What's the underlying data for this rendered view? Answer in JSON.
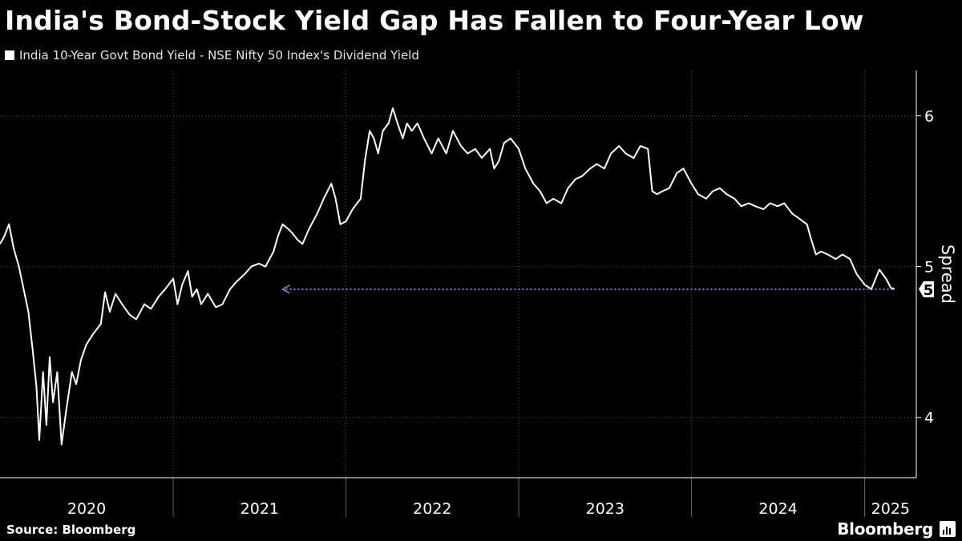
{
  "header": {
    "title": "India's Bond-Stock Yield Gap Has Fallen to Four-Year Low"
  },
  "footer": {
    "source": "Source: Bloomberg",
    "brand": "Bloomberg"
  },
  "colors": {
    "background": "#000000",
    "line": "#ffffff",
    "grid": "#555555",
    "marker": "#b070e0"
  },
  "chart_data": {
    "type": "line",
    "title": "India's Bond-Stock Yield Gap Has Fallen to Four-Year Low",
    "series": [
      {
        "name": "India 10-Year Govt Bond Yield - NSE Nifty 50 Index's Dividend Yield",
        "color": "#ffffff",
        "points": [
          [
            "2020-01-01",
            5.15
          ],
          [
            "2020-01-10",
            5.2
          ],
          [
            "2020-01-20",
            5.28
          ],
          [
            "2020-01-30",
            5.12
          ],
          [
            "2020-02-10",
            5.0
          ],
          [
            "2020-02-20",
            4.85
          ],
          [
            "2020-03-01",
            4.7
          ],
          [
            "2020-03-10",
            4.45
          ],
          [
            "2020-03-18",
            4.2
          ],
          [
            "2020-03-24",
            3.85
          ],
          [
            "2020-04-01",
            4.3
          ],
          [
            "2020-04-08",
            3.95
          ],
          [
            "2020-04-15",
            4.4
          ],
          [
            "2020-04-22",
            4.1
          ],
          [
            "2020-05-01",
            4.3
          ],
          [
            "2020-05-10",
            3.82
          ],
          [
            "2020-05-20",
            4.05
          ],
          [
            "2020-06-01",
            4.3
          ],
          [
            "2020-06-10",
            4.22
          ],
          [
            "2020-06-20",
            4.38
          ],
          [
            "2020-07-01",
            4.48
          ],
          [
            "2020-07-15",
            4.55
          ],
          [
            "2020-08-01",
            4.62
          ],
          [
            "2020-08-10",
            4.83
          ],
          [
            "2020-08-20",
            4.7
          ],
          [
            "2020-09-01",
            4.82
          ],
          [
            "2020-09-15",
            4.75
          ],
          [
            "2020-10-01",
            4.68
          ],
          [
            "2020-10-15",
            4.65
          ],
          [
            "2020-11-01",
            4.75
          ],
          [
            "2020-11-15",
            4.72
          ],
          [
            "2020-12-01",
            4.8
          ],
          [
            "2020-12-15",
            4.85
          ],
          [
            "2021-01-01",
            4.92
          ],
          [
            "2021-01-10",
            4.75
          ],
          [
            "2021-01-20",
            4.88
          ],
          [
            "2021-02-01",
            4.97
          ],
          [
            "2021-02-10",
            4.8
          ],
          [
            "2021-02-20",
            4.85
          ],
          [
            "2021-03-01",
            4.75
          ],
          [
            "2021-03-15",
            4.82
          ],
          [
            "2021-04-01",
            4.73
          ],
          [
            "2021-04-15",
            4.75
          ],
          [
            "2021-05-01",
            4.85
          ],
          [
            "2021-05-15",
            4.9
          ],
          [
            "2021-06-01",
            4.95
          ],
          [
            "2021-06-15",
            5.0
          ],
          [
            "2021-07-01",
            5.02
          ],
          [
            "2021-07-15",
            5.0
          ],
          [
            "2021-08-01",
            5.1
          ],
          [
            "2021-08-10",
            5.2
          ],
          [
            "2021-08-20",
            5.28
          ],
          [
            "2021-09-01",
            5.25
          ],
          [
            "2021-09-10",
            5.22
          ],
          [
            "2021-09-20",
            5.18
          ],
          [
            "2021-10-01",
            5.15
          ],
          [
            "2021-10-15",
            5.25
          ],
          [
            "2021-11-01",
            5.35
          ],
          [
            "2021-11-15",
            5.45
          ],
          [
            "2021-12-01",
            5.55
          ],
          [
            "2021-12-10",
            5.45
          ],
          [
            "2021-12-20",
            5.28
          ],
          [
            "2022-01-01",
            5.3
          ],
          [
            "2022-01-15",
            5.38
          ],
          [
            "2022-02-01",
            5.45
          ],
          [
            "2022-02-10",
            5.7
          ],
          [
            "2022-02-20",
            5.9
          ],
          [
            "2022-03-01",
            5.85
          ],
          [
            "2022-03-10",
            5.75
          ],
          [
            "2022-03-20",
            5.9
          ],
          [
            "2022-04-01",
            5.95
          ],
          [
            "2022-04-10",
            6.05
          ],
          [
            "2022-04-20",
            5.95
          ],
          [
            "2022-05-01",
            5.85
          ],
          [
            "2022-05-10",
            5.95
          ],
          [
            "2022-05-20",
            5.9
          ],
          [
            "2022-06-01",
            5.95
          ],
          [
            "2022-06-15",
            5.85
          ],
          [
            "2022-07-01",
            5.75
          ],
          [
            "2022-07-15",
            5.85
          ],
          [
            "2022-08-01",
            5.75
          ],
          [
            "2022-08-15",
            5.9
          ],
          [
            "2022-09-01",
            5.8
          ],
          [
            "2022-09-15",
            5.75
          ],
          [
            "2022-10-01",
            5.78
          ],
          [
            "2022-10-15",
            5.72
          ],
          [
            "2022-11-01",
            5.78
          ],
          [
            "2022-11-10",
            5.65
          ],
          [
            "2022-11-20",
            5.7
          ],
          [
            "2022-12-01",
            5.82
          ],
          [
            "2022-12-15",
            5.85
          ],
          [
            "2023-01-01",
            5.78
          ],
          [
            "2023-01-15",
            5.65
          ],
          [
            "2023-02-01",
            5.55
          ],
          [
            "2023-02-15",
            5.5
          ],
          [
            "2023-03-01",
            5.42
          ],
          [
            "2023-03-15",
            5.45
          ],
          [
            "2023-04-01",
            5.42
          ],
          [
            "2023-04-15",
            5.52
          ],
          [
            "2023-05-01",
            5.58
          ],
          [
            "2023-05-15",
            5.6
          ],
          [
            "2023-06-01",
            5.65
          ],
          [
            "2023-06-15",
            5.68
          ],
          [
            "2023-07-01",
            5.65
          ],
          [
            "2023-07-15",
            5.75
          ],
          [
            "2023-08-01",
            5.8
          ],
          [
            "2023-08-15",
            5.75
          ],
          [
            "2023-09-01",
            5.72
          ],
          [
            "2023-09-15",
            5.8
          ],
          [
            "2023-10-01",
            5.78
          ],
          [
            "2023-10-10",
            5.5
          ],
          [
            "2023-10-20",
            5.48
          ],
          [
            "2023-11-01",
            5.5
          ],
          [
            "2023-11-15",
            5.52
          ],
          [
            "2023-12-01",
            5.62
          ],
          [
            "2023-12-15",
            5.65
          ],
          [
            "2024-01-01",
            5.55
          ],
          [
            "2024-01-15",
            5.48
          ],
          [
            "2024-02-01",
            5.45
          ],
          [
            "2024-02-15",
            5.5
          ],
          [
            "2024-03-01",
            5.52
          ],
          [
            "2024-03-15",
            5.48
          ],
          [
            "2024-04-01",
            5.45
          ],
          [
            "2024-04-15",
            5.4
          ],
          [
            "2024-05-01",
            5.42
          ],
          [
            "2024-05-15",
            5.4
          ],
          [
            "2024-06-01",
            5.38
          ],
          [
            "2024-06-15",
            5.42
          ],
          [
            "2024-07-01",
            5.4
          ],
          [
            "2024-07-15",
            5.42
          ],
          [
            "2024-08-01",
            5.35
          ],
          [
            "2024-08-15",
            5.32
          ],
          [
            "2024-09-01",
            5.28
          ],
          [
            "2024-09-10",
            5.18
          ],
          [
            "2024-09-20",
            5.08
          ],
          [
            "2024-10-01",
            5.1
          ],
          [
            "2024-10-15",
            5.08
          ],
          [
            "2024-11-01",
            5.05
          ],
          [
            "2024-11-15",
            5.08
          ],
          [
            "2024-12-01",
            5.05
          ],
          [
            "2024-12-15",
            4.95
          ],
          [
            "2025-01-01",
            4.88
          ],
          [
            "2025-01-15",
            4.85
          ],
          [
            "2025-02-01",
            4.98
          ],
          [
            "2025-02-15",
            4.92
          ],
          [
            "2025-02-25",
            4.86
          ],
          [
            "2025-03-05",
            4.85
          ]
        ]
      }
    ],
    "x_axis": {
      "type": "date",
      "range": [
        "2020-01-01",
        "2025-04-20"
      ],
      "year_labels": [
        {
          "label": "2020",
          "start": "2020-01-01",
          "end": "2021-01-01"
        },
        {
          "label": "2021",
          "start": "2021-01-01",
          "end": "2022-01-01"
        },
        {
          "label": "2022",
          "start": "2022-01-01",
          "end": "2023-01-01"
        },
        {
          "label": "2023",
          "start": "2023-01-01",
          "end": "2024-01-01"
        },
        {
          "label": "2024",
          "start": "2024-01-01",
          "end": "2025-01-01"
        },
        {
          "label": "2025",
          "start": "2025-01-01",
          "end": "2025-04-20"
        }
      ]
    },
    "y_axis": {
      "label": "Spread",
      "position": "right",
      "range": [
        3.6,
        6.3
      ],
      "ticks": [
        4,
        5,
        6
      ]
    },
    "last_value_label": "5",
    "reference_line": {
      "value": 4.85,
      "from": "2021-08-20",
      "to": "2025-03-05",
      "style": "dotted-arrow"
    },
    "grid": true,
    "legend": "top-left"
  }
}
